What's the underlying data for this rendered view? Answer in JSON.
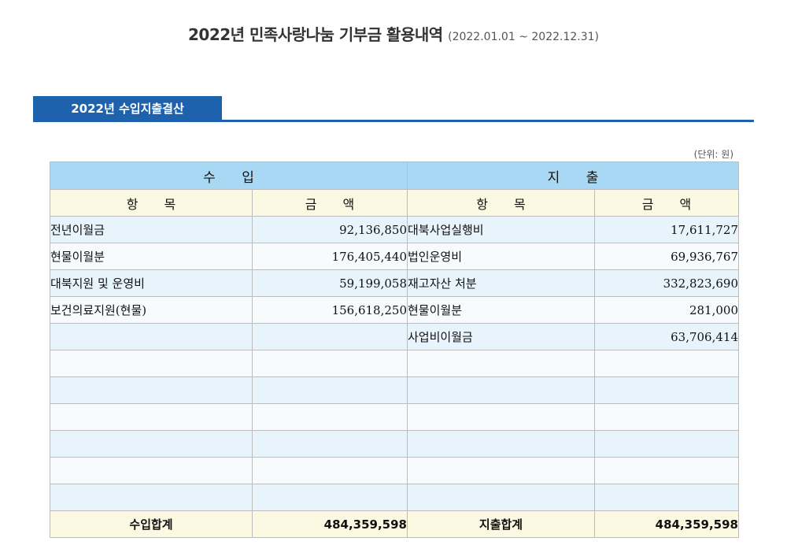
{
  "page": {
    "title": "2022년 민족사랑나눔 기부금 활용내역",
    "period": "(2022.01.01 ~ 2022.12.31)"
  },
  "section": {
    "tab_label": "2022년 수입지출결산",
    "unit": "(단위: 원)"
  },
  "table": {
    "income_header": "수 입",
    "expense_header": "지 출",
    "col_item": "항 목",
    "col_amount": "금 액",
    "rows": [
      {
        "income_item": "전년이월금",
        "income_amount": "92,136,850",
        "expense_item": "대북사업실행비",
        "expense_amount": "17,611,727"
      },
      {
        "income_item": "현물이월분",
        "income_amount": "176,405,440",
        "expense_item": "법인운영비",
        "expense_amount": "69,936,767"
      },
      {
        "income_item": "대북지원 및 운영비",
        "income_amount": "59,199,058",
        "expense_item": "재고자산 처분",
        "expense_amount": "332,823,690"
      },
      {
        "income_item": "보건의료지원(현물)",
        "income_amount": "156,618,250",
        "expense_item": "현물이월분",
        "expense_amount": "281,000"
      },
      {
        "income_item": "",
        "income_amount": "",
        "expense_item": "사업비이월금",
        "expense_amount": "63,706,414"
      },
      {
        "income_item": "",
        "income_amount": "",
        "expense_item": "",
        "expense_amount": ""
      },
      {
        "income_item": "",
        "income_amount": "",
        "expense_item": "",
        "expense_amount": ""
      },
      {
        "income_item": "",
        "income_amount": "",
        "expense_item": "",
        "expense_amount": ""
      },
      {
        "income_item": "",
        "income_amount": "",
        "expense_item": "",
        "expense_amount": ""
      },
      {
        "income_item": "",
        "income_amount": "",
        "expense_item": "",
        "expense_amount": ""
      },
      {
        "income_item": "",
        "income_amount": "",
        "expense_item": "",
        "expense_amount": ""
      }
    ],
    "income_total_label": "수입합계",
    "income_total": "484,359,598",
    "expense_total_label": "지출합계",
    "expense_total": "484,359,598"
  },
  "colors": {
    "accent": "#1e62ad",
    "header_blue": "#a9d8f4",
    "header_cream": "#fbf9e2",
    "row_blue": "#e8f4fc"
  }
}
